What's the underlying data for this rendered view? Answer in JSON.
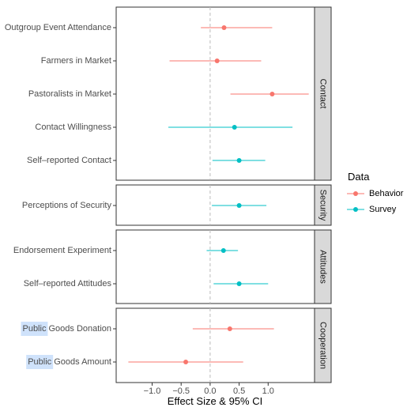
{
  "chart_data": {
    "type": "scatter",
    "xlabel": "Effect Size & 95% CI",
    "ylabel": "",
    "xlim": [
      -1.62,
      1.8
    ],
    "xticks": [
      {
        "value": -1.0,
        "label": "−1.0"
      },
      {
        "value": -0.5,
        "label": "−0.5"
      },
      {
        "value": 0.0,
        "label": "0.0"
      },
      {
        "value": 0.5,
        "label": "0.5"
      },
      {
        "value": 1.0,
        "label": "1.0"
      }
    ],
    "reference_line": 0,
    "grid": false,
    "legend": {
      "title": "Data",
      "placement": "right",
      "entries": [
        {
          "key": "behavior",
          "label": "Behavior"
        },
        {
          "key": "survey",
          "label": "Survey"
        }
      ]
    },
    "colors": {
      "behavior": "#f8766d",
      "survey": "#00bfc4",
      "strip_fill": "#d9d9d9",
      "panel_border": "#333333",
      "reference_line": "#bbbbbb"
    },
    "panels": [
      {
        "strip": "Contact",
        "rows": [
          {
            "label": "Outgroup Event Attendance",
            "series": "behavior",
            "estimate": 0.24,
            "ci": [
              -0.16,
              1.07
            ]
          },
          {
            "label": "Farmers in Market",
            "series": "behavior",
            "estimate": 0.12,
            "ci": [
              -0.7,
              0.88
            ]
          },
          {
            "label": "Pastoralists in Market",
            "series": "behavior",
            "estimate": 1.07,
            "ci": [
              0.35,
              1.7
            ]
          },
          {
            "label": "Contact Willingness",
            "series": "survey",
            "estimate": 0.42,
            "ci": [
              -0.72,
              1.42
            ]
          },
          {
            "label": "Self–reported Contact",
            "series": "survey",
            "estimate": 0.5,
            "ci": [
              0.04,
              0.95
            ]
          }
        ]
      },
      {
        "strip": "Security",
        "rows": [
          {
            "label": "Perceptions of Security",
            "series": "survey",
            "estimate": 0.5,
            "ci": [
              0.03,
              0.97
            ]
          }
        ]
      },
      {
        "strip": "Attitudes",
        "rows": [
          {
            "label": "Endorsement Experiment",
            "series": "survey",
            "estimate": 0.23,
            "ci": [
              -0.06,
              0.48
            ]
          },
          {
            "label": "Self–reported Attitudes",
            "series": "survey",
            "estimate": 0.5,
            "ci": [
              0.06,
              1.0
            ]
          }
        ]
      },
      {
        "strip": "Cooperation",
        "rows": [
          {
            "label": "Public Goods Donation",
            "series": "behavior",
            "estimate": 0.34,
            "ci": [
              -0.3,
              1.1
            ],
            "highlight": "Public"
          },
          {
            "label": "Public Goods Amount",
            "series": "behavior",
            "estimate": -0.42,
            "ci": [
              -1.41,
              0.57
            ],
            "highlight": "Public"
          }
        ]
      }
    ]
  }
}
